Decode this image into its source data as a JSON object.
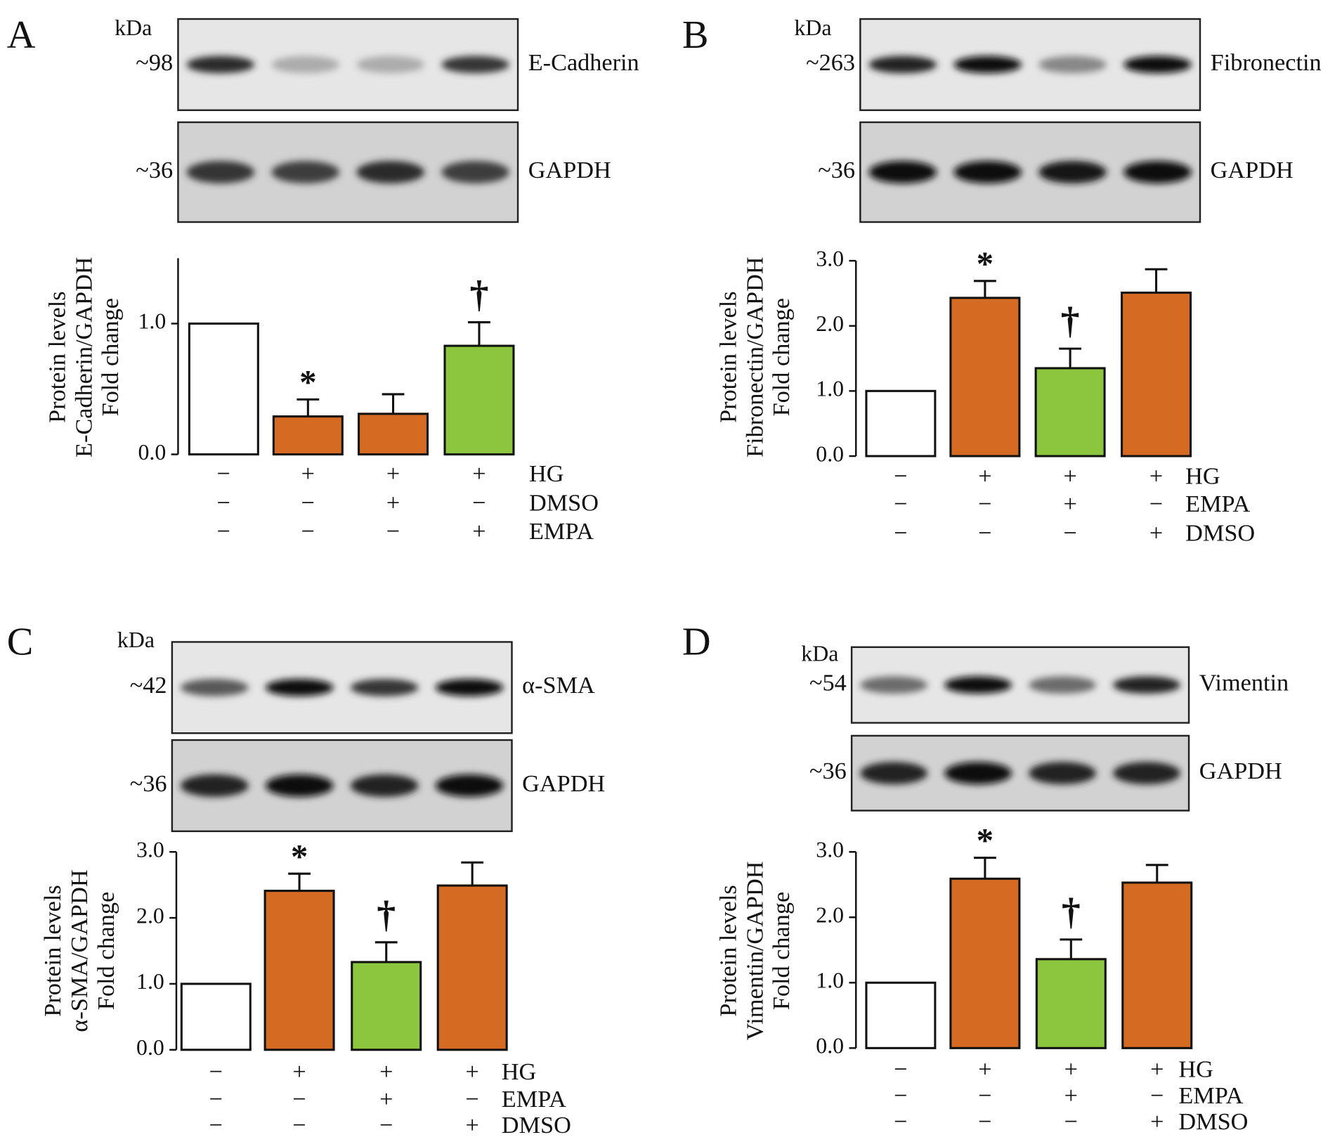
{
  "chart_data": [
    {
      "type": "bar",
      "panel": "A",
      "kda": "kDa",
      "blots": [
        {
          "marker": "~98",
          "label": "E-Cadherin"
        },
        {
          "marker": "~36",
          "label": "GAPDH"
        }
      ],
      "ylabel": [
        "Protein levels",
        "E-Cadherin/GAPDH",
        "Fold change"
      ],
      "values": [
        1.0,
        0.29,
        0.31,
        0.83
      ],
      "errors": [
        null,
        0.13,
        0.15,
        0.18
      ],
      "colors": [
        "#ffffff",
        "#d56a22",
        "#d56a22",
        "#8cc63f"
      ],
      "annotations": [
        null,
        "*",
        null,
        "†"
      ],
      "ylim": [
        0,
        1.5
      ],
      "yticks": [
        {
          "value": 0,
          "label": "0.0"
        },
        {
          "value": 1,
          "label": "1.0"
        }
      ],
      "conditions": [
        {
          "name": "HG",
          "signs": [
            "−",
            "+",
            "+",
            "+"
          ]
        },
        {
          "name": "DMSO",
          "signs": [
            "−",
            "−",
            "+",
            "−"
          ]
        },
        {
          "name": "EMPA",
          "signs": [
            "−",
            "−",
            "−",
            "+"
          ]
        }
      ]
    },
    {
      "type": "bar",
      "panel": "B",
      "kda": "kDa",
      "blots": [
        {
          "marker": "~263",
          "label": "Fibronectin"
        },
        {
          "marker": "~36",
          "label": "GAPDH"
        }
      ],
      "ylabel": [
        "Protein levels",
        "Fibronectin/GAPDH",
        "Fold change"
      ],
      "values": [
        1.0,
        2.43,
        1.35,
        2.51
      ],
      "errors": [
        null,
        0.26,
        0.3,
        0.36
      ],
      "colors": [
        "#ffffff",
        "#d56a22",
        "#8cc63f",
        "#d56a22"
      ],
      "annotations": [
        null,
        "*",
        "†",
        null
      ],
      "ylim": [
        0,
        3
      ],
      "yticks": [
        {
          "value": 0,
          "label": "0.0"
        },
        {
          "value": 1,
          "label": "1.0"
        },
        {
          "value": 2,
          "label": "2.0"
        },
        {
          "value": 3,
          "label": "3.0"
        }
      ],
      "conditions": [
        {
          "name": "HG",
          "signs": [
            "−",
            "+",
            "+",
            "+"
          ]
        },
        {
          "name": "EMPA",
          "signs": [
            "−",
            "−",
            "+",
            "−"
          ]
        },
        {
          "name": "DMSO",
          "signs": [
            "−",
            "−",
            "−",
            "+"
          ]
        }
      ]
    },
    {
      "type": "bar",
      "panel": "C",
      "kda": "kDa",
      "blots": [
        {
          "marker": "~42",
          "label": "α-SMA"
        },
        {
          "marker": "~36",
          "label": "GAPDH"
        }
      ],
      "ylabel": [
        "Protein levels",
        "α-SMA/GAPDH",
        "Fold change"
      ],
      "values": [
        1.0,
        2.41,
        1.33,
        2.49
      ],
      "errors": [
        null,
        0.26,
        0.3,
        0.35
      ],
      "colors": [
        "#ffffff",
        "#d56a22",
        "#8cc63f",
        "#d56a22"
      ],
      "annotations": [
        null,
        "*",
        "†",
        null
      ],
      "ylim": [
        0,
        3
      ],
      "yticks": [
        {
          "value": 0,
          "label": "0.0"
        },
        {
          "value": 1,
          "label": "1.0"
        },
        {
          "value": 2,
          "label": "2.0"
        },
        {
          "value": 3,
          "label": "3.0"
        }
      ],
      "conditions": [
        {
          "name": "HG",
          "signs": [
            "−",
            "+",
            "+",
            "+"
          ]
        },
        {
          "name": "EMPA",
          "signs": [
            "−",
            "−",
            "+",
            "−"
          ]
        },
        {
          "name": "DMSO",
          "signs": [
            "−",
            "−",
            "−",
            "+"
          ]
        }
      ]
    },
    {
      "type": "bar",
      "panel": "D",
      "kda": "kDa",
      "blots": [
        {
          "marker": "~54",
          "label": "Vimentin"
        },
        {
          "marker": "~36",
          "label": "GAPDH"
        }
      ],
      "ylabel": [
        "Protein levels",
        "Vimentin/GAPDH",
        "Fold change"
      ],
      "values": [
        1.0,
        2.59,
        1.36,
        2.53
      ],
      "errors": [
        null,
        0.32,
        0.3,
        0.27
      ],
      "colors": [
        "#ffffff",
        "#d56a22",
        "#8cc63f",
        "#d56a22"
      ],
      "annotations": [
        null,
        "*",
        "†",
        null
      ],
      "ylim": [
        0,
        3
      ],
      "yticks": [
        {
          "value": 0,
          "label": "0.0"
        },
        {
          "value": 1,
          "label": "1.0"
        },
        {
          "value": 2,
          "label": "2.0"
        },
        {
          "value": 3,
          "label": "3.0"
        }
      ],
      "conditions": [
        {
          "name": "HG",
          "signs": [
            "−",
            "+",
            "+",
            "+"
          ]
        },
        {
          "name": "EMPA",
          "signs": [
            "−",
            "−",
            "+",
            "−"
          ]
        },
        {
          "name": "DMSO",
          "signs": [
            "−",
            "−",
            "−",
            "+"
          ]
        }
      ]
    }
  ]
}
